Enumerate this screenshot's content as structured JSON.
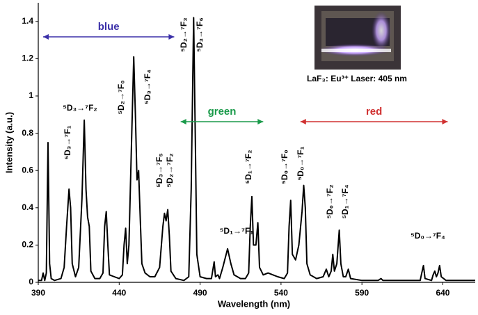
{
  "chart_data": {
    "type": "line",
    "x_label": "Wavelength (nm)",
    "y_label": "Intensity (a.u.)",
    "xlim": [
      390,
      660
    ],
    "ylim": [
      0,
      1.5
    ],
    "xticks": [
      390,
      440,
      490,
      540,
      590,
      640
    ],
    "yticks": [
      0,
      0.2,
      0.4,
      0.6,
      0.8,
      1,
      1.2,
      1.4
    ],
    "color": "#000000",
    "x": [
      390,
      392,
      393,
      394,
      395,
      396,
      397,
      398,
      400,
      404,
      406,
      407.5,
      409,
      410,
      411,
      413,
      415,
      417,
      418.4,
      419.5,
      420.5,
      421.5,
      422.5,
      425,
      428,
      430,
      431,
      432,
      433,
      434,
      437,
      440,
      442,
      443,
      444,
      445,
      446,
      447.5,
      449,
      450,
      451,
      452,
      453,
      454,
      456,
      459,
      462,
      465,
      467,
      468,
      469,
      470,
      471,
      472,
      475,
      480,
      483,
      484.5,
      486,
      487,
      488,
      490,
      494,
      497,
      498.7,
      499.5,
      501,
      502,
      504,
      507,
      509,
      511,
      515,
      518,
      520,
      521,
      522,
      523,
      524.5,
      525.7,
      526.7,
      529,
      532,
      535,
      538,
      542,
      544,
      545,
      546,
      547,
      549,
      551,
      553,
      554,
      555,
      556,
      558,
      562,
      566,
      568,
      569.5,
      571,
      572,
      573,
      574.5,
      576,
      577,
      578.5,
      580,
      581.6,
      583,
      590,
      600,
      601.8,
      603,
      615,
      626,
      627,
      628,
      629,
      633,
      634,
      635,
      636,
      637,
      638,
      639,
      642,
      650,
      660
    ],
    "y": [
      0.01,
      0.01,
      0.05,
      0.01,
      0.05,
      0.75,
      0.1,
      0.02,
      0.01,
      0.02,
      0.08,
      0.3,
      0.5,
      0.4,
      0.1,
      0.03,
      0.08,
      0.45,
      0.87,
      0.5,
      0.35,
      0.3,
      0.06,
      0.02,
      0.02,
      0.05,
      0.3,
      0.38,
      0.2,
      0.04,
      0.03,
      0.02,
      0.04,
      0.2,
      0.29,
      0.1,
      0.2,
      0.7,
      1.21,
      0.9,
      0.55,
      0.6,
      0.35,
      0.1,
      0.05,
      0.03,
      0.03,
      0.08,
      0.3,
      0.37,
      0.33,
      0.39,
      0.25,
      0.06,
      0.02,
      0.01,
      0.03,
      0.5,
      1.42,
      0.8,
      0.15,
      0.03,
      0.02,
      0.02,
      0.11,
      0.03,
      0.04,
      0.02,
      0.08,
      0.18,
      0.1,
      0.04,
      0.02,
      0.02,
      0.05,
      0.3,
      0.46,
      0.2,
      0.2,
      0.32,
      0.08,
      0.04,
      0.05,
      0.04,
      0.03,
      0.02,
      0.05,
      0.3,
      0.44,
      0.15,
      0.12,
      0.2,
      0.38,
      0.52,
      0.4,
      0.1,
      0.04,
      0.02,
      0.03,
      0.07,
      0.03,
      0.06,
      0.15,
      0.06,
      0.1,
      0.28,
      0.1,
      0.03,
      0.03,
      0.07,
      0.02,
      0.01,
      0.01,
      0.02,
      0.01,
      0.01,
      0.01,
      0.05,
      0.09,
      0.02,
      0.01,
      0.04,
      0.06,
      0.03,
      0.05,
      0.09,
      0.03,
      0.01,
      0.01,
      0.01
    ],
    "regions": [
      {
        "label": "blue",
        "color": "#3a2fa8",
        "range": [
          393,
          474
        ]
      },
      {
        "label": "green",
        "color": "#1a9a4a",
        "range": [
          478,
          529
        ]
      },
      {
        "label": "red",
        "color": "#d03030",
        "range": [
          552,
          643
        ]
      }
    ],
    "annotations": [
      "⁵D₃→⁷F₂",
      "⁵D₃→⁷F₁",
      "⁵D₂→⁷F₀",
      "⁵D₃→⁷F₄",
      "⁵D₃→⁷F₅",
      "⁵D₂→⁷F₂",
      "⁵D₂→⁷F₃",
      "⁵D₃→⁷F₆",
      "⁵D₁→⁷F₁",
      "⁵D₁→⁷F₂",
      "⁵D₀→⁷F₀",
      "⁵D₀→⁷F₁",
      "⁵D₀→⁷F₂",
      "⁵D₁→⁷F₄",
      "⁵D₀→⁷F₄"
    ],
    "inset_caption": "LaF₃: Eu³⁺ Laser: 405 nm"
  }
}
